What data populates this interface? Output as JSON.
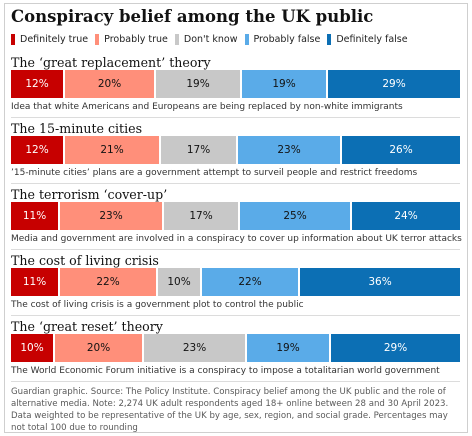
{
  "title": "Conspiracy belief among the UK public",
  "legend": [
    {
      "label": "Definitely true",
      "color": "#c70000"
    },
    {
      "label": "Probably true",
      "color": "#ff8f7a"
    },
    {
      "label": "Don't know",
      "color": "#c8c8c8"
    },
    {
      "label": "Probably false",
      "color": "#5aabe8"
    },
    {
      "label": "Definitely false",
      "color": "#0c6fb4"
    }
  ],
  "chart_data": {
    "type": "bar",
    "stacked": true,
    "orientation": "horizontal",
    "title": "Conspiracy belief among the UK public",
    "series_names": [
      "Definitely true",
      "Probably true",
      "Don't know",
      "Probably false",
      "Definitely false"
    ],
    "colors": [
      "#c70000",
      "#ff8f7a",
      "#c8c8c8",
      "#5aabe8",
      "#0c6fb4"
    ],
    "label_colors": [
      "#ffffff",
      "#121212",
      "#121212",
      "#121212",
      "#ffffff"
    ],
    "value_suffix": "%",
    "rows": [
      {
        "title": "The ‘great replacement’ theory",
        "values": [
          12,
          20,
          19,
          19,
          29
        ],
        "description": "Idea that white Americans and Europeans are being replaced by non-white immigrants"
      },
      {
        "title": "The 15-minute cities",
        "values": [
          12,
          21,
          17,
          23,
          26
        ],
        "description": "’15-minute cities’ plans are a government attempt to surveil people and restrict freedoms"
      },
      {
        "title": "The terrorism ‘cover-up’",
        "values": [
          11,
          23,
          17,
          25,
          24
        ],
        "description": "Media and government are involved in a conspiracy to cover up information about UK terror attacks"
      },
      {
        "title": "The cost of living crisis",
        "values": [
          11,
          22,
          10,
          22,
          36
        ],
        "description": "The cost of living crisis is a government plot to control the public"
      },
      {
        "title": "The ‘great reset’ theory",
        "values": [
          10,
          20,
          23,
          19,
          29
        ],
        "description": "The World Economic Forum initiative is a conspiracy to impose a totalitarian world government"
      }
    ]
  },
  "source": "Guardian graphic. Source: The Policy Institute. Conspiracy belief among the UK public and the role of alternative media. Note: 2,274 UK adult respondents aged 18+ online between 28 and 30 April 2023. Data weighted to be representative of the UK by age, sex, region, and social grade. Percentages may not total 100 due to rounding"
}
